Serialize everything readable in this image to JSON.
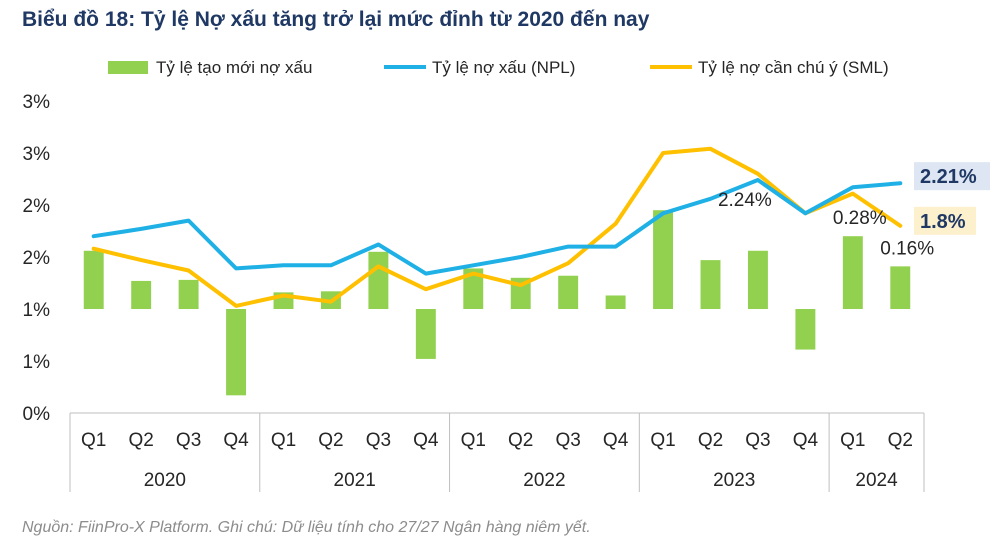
{
  "title": "Biểu đồ 18: Tỷ lệ Nợ xấu tăng trở lại mức đỉnh từ 2020 đến nay",
  "source": "Nguồn: FiinPro-X Platform. Ghi chú: Dữ liệu  tính cho 27/27 Ngân hàng niêm yết.",
  "chart_data": {
    "type": "bar+line",
    "ylim": [
      0,
      3
    ],
    "y_ticks": [
      "0%",
      "1%",
      "1%",
      "2%",
      "2%",
      "3%",
      "3%"
    ],
    "y_tick_values": [
      0,
      0.5,
      1.0,
      1.5,
      2.0,
      2.5,
      3.0
    ],
    "categories": [
      "Q1",
      "Q2",
      "Q3",
      "Q4",
      "Q1",
      "Q2",
      "Q3",
      "Q4",
      "Q1",
      "Q2",
      "Q3",
      "Q4",
      "Q1",
      "Q2",
      "Q3",
      "Q4",
      "Q1",
      "Q2"
    ],
    "years": [
      {
        "label": "2020",
        "count": 4
      },
      {
        "label": "2021",
        "count": 4
      },
      {
        "label": "2022",
        "count": 4
      },
      {
        "label": "2023",
        "count": 4
      },
      {
        "label": "2024",
        "count": 2
      }
    ],
    "legend_position": "top",
    "series": [
      {
        "name": "Tỷ lệ tạo mới nợ xấu",
        "type": "bar",
        "color": "#92d050",
        "baseline": 1.0,
        "values": [
          1.56,
          1.27,
          1.28,
          0.17,
          1.16,
          1.17,
          1.55,
          0.52,
          1.39,
          1.3,
          1.32,
          1.13,
          1.95,
          1.47,
          1.56,
          0.61,
          1.7,
          1.41
        ]
      },
      {
        "name": "Tỷ lệ nợ xấu (NPL)",
        "type": "line",
        "color": "#1fb0e6",
        "values": [
          1.7,
          1.77,
          1.85,
          1.39,
          1.42,
          1.42,
          1.62,
          1.34,
          1.42,
          1.5,
          1.6,
          1.6,
          1.92,
          2.06,
          2.24,
          1.92,
          2.17,
          2.21
        ]
      },
      {
        "name": "Tỷ lệ nợ cần chú ý (SML)",
        "type": "line",
        "color": "#ffc000",
        "values": [
          1.58,
          1.47,
          1.37,
          1.03,
          1.13,
          1.07,
          1.41,
          1.19,
          1.34,
          1.23,
          1.44,
          1.82,
          2.5,
          2.54,
          2.3,
          1.92,
          2.11,
          1.8
        ]
      }
    ],
    "annotations": [
      {
        "text": "2.24%",
        "series": 1,
        "index": 14
      },
      {
        "text": "0.28%",
        "series": 0,
        "index": 16
      },
      {
        "text": "0.16%",
        "series": 0,
        "index": 17
      }
    ],
    "end_labels": [
      {
        "text": "2.21%",
        "series": 1,
        "bg": "#dde6f2"
      },
      {
        "text": "1.8%",
        "series": 2,
        "bg": "#fdf0cc"
      }
    ]
  }
}
